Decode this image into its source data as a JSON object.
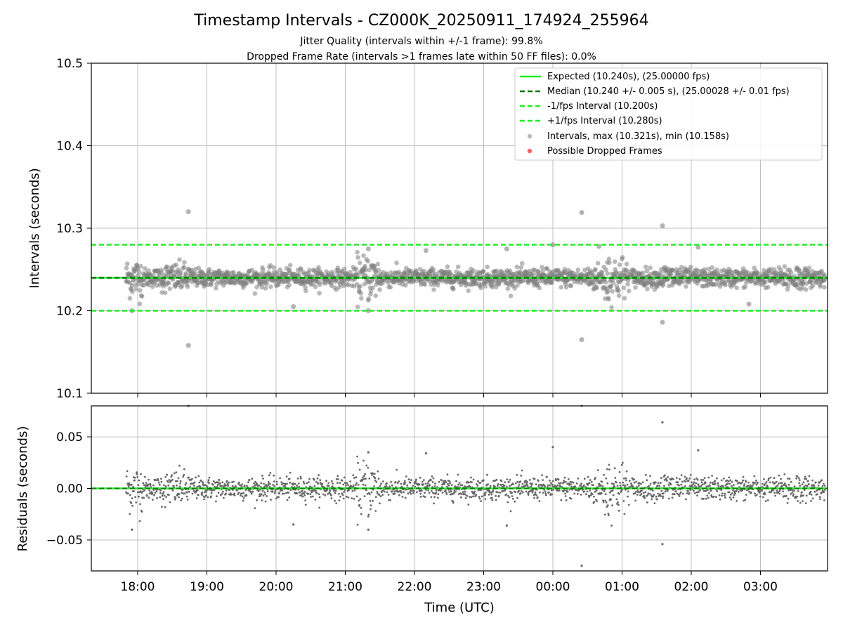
{
  "title": "Timestamp Intervals - CZ000K_20250911_174924_255964",
  "subtitle_1": "Jitter Quality (intervals within +/-1 frame): 99.8%",
  "subtitle_2": "Dropped Frame Rate (intervals >1 frames late within 50 FF files): 0.0%",
  "colors": {
    "expected": "#22ee22",
    "median": "#117711",
    "bounds": "#22ee22",
    "points": "#808080",
    "dropped": "#ee5555",
    "grid": "#bfbfbf"
  },
  "chart_data": [
    {
      "type": "scatter",
      "name": "intervals",
      "ylabel": "Intervals (seconds)",
      "ylim": [
        10.1,
        10.5
      ],
      "yticks": [
        "10.1",
        "10.2",
        "10.3",
        "10.4",
        "10.5"
      ],
      "ytick_values": [
        10.1,
        10.2,
        10.3,
        10.4,
        10.5
      ],
      "grid": true,
      "legend_placement": "top-right",
      "legend": [
        "Expected (10.240s), (25.00000 fps)",
        "Median (10.240 +/- 0.005 s), (25.00028 +/- 0.01 fps)",
        "-1/fps Interval (10.200s)",
        "+1/fps Interval (10.280s)",
        "Intervals, max (10.321s), min (10.158s)",
        "Possible Dropped Frames"
      ],
      "expected": 10.24,
      "median": 10.24,
      "lower_bound": 10.2,
      "upper_bound": 10.28,
      "max": 10.321,
      "min": 10.158,
      "x_start": "17:50",
      "x_end": "03:56",
      "outliers": [
        {
          "x": "18:44",
          "y": 10.32
        },
        {
          "x": "18:44",
          "y": 10.158
        },
        {
          "x": "00:25",
          "y": 10.319
        },
        {
          "x": "00:25",
          "y": 10.165
        },
        {
          "x": "01:35",
          "y": 10.303
        },
        {
          "x": "01:35",
          "y": 10.186
        },
        {
          "x": "00:00",
          "y": 10.28
        },
        {
          "x": "17:55",
          "y": 10.2
        },
        {
          "x": "21:20",
          "y": 10.2
        },
        {
          "x": "21:20",
          "y": 10.275
        },
        {
          "x": "22:10",
          "y": 10.273
        },
        {
          "x": "23:20",
          "y": 10.275
        },
        {
          "x": "02:06",
          "y": 10.277
        },
        {
          "x": "02:50",
          "y": 10.208
        },
        {
          "x": "20:15",
          "y": 10.205
        },
        {
          "x": "00:40",
          "y": 10.278
        }
      ]
    },
    {
      "type": "scatter",
      "name": "residuals",
      "ylabel": "Residuals (seconds)",
      "xlabel": "Time (UTC)",
      "ylim": [
        -0.08,
        0.08
      ],
      "yticks": [
        "−0.05",
        "0.00",
        "0.05"
      ],
      "ytick_values": [
        -0.05,
        0.0,
        0.05
      ],
      "grid": true,
      "xticks": [
        "18:00",
        "19:00",
        "20:00",
        "21:00",
        "22:00",
        "23:00",
        "00:00",
        "01:00",
        "02:00",
        "03:00"
      ],
      "zero_line": 0.0,
      "outliers": [
        {
          "x": "18:44",
          "y": 0.08
        },
        {
          "x": "00:25",
          "y": 0.08
        },
        {
          "x": "00:25",
          "y": -0.075
        },
        {
          "x": "01:35",
          "y": 0.064
        },
        {
          "x": "01:35",
          "y": -0.054
        },
        {
          "x": "00:00",
          "y": 0.04
        },
        {
          "x": "21:20",
          "y": -0.04
        },
        {
          "x": "21:20",
          "y": 0.035
        },
        {
          "x": "22:10",
          "y": 0.034
        },
        {
          "x": "23:20",
          "y": -0.036
        },
        {
          "x": "02:06",
          "y": 0.037
        },
        {
          "x": "20:15",
          "y": -0.035
        },
        {
          "x": "17:55",
          "y": -0.04
        }
      ]
    }
  ]
}
